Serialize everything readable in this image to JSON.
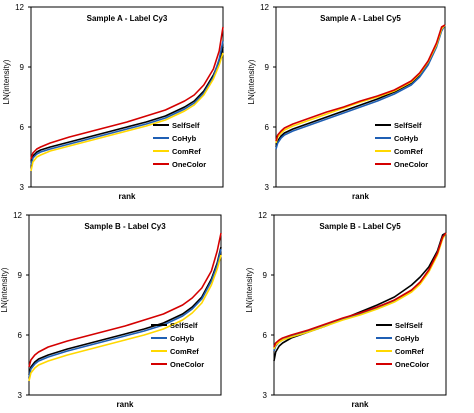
{
  "chart_data": [
    {
      "type": "line",
      "title": "Sample A - Label Cy3",
      "xlabel": "rank",
      "ylabel": "LN(intensity)",
      "yticks": [
        "3",
        "6",
        "9",
        "12"
      ],
      "ylim": [
        3,
        12
      ],
      "xlim": [
        0,
        100
      ],
      "legend": "bottom-right",
      "series": [
        {
          "name": "SelfSelf",
          "color": "#000000",
          "x": [
            0,
            1,
            3,
            5,
            10,
            20,
            30,
            40,
            50,
            60,
            70,
            80,
            85,
            90,
            95,
            98,
            100
          ],
          "y": [
            4.3,
            4.55,
            4.75,
            4.85,
            5.0,
            5.25,
            5.5,
            5.75,
            6.0,
            6.25,
            6.55,
            7.0,
            7.3,
            7.8,
            8.6,
            9.3,
            10.0
          ]
        },
        {
          "name": "CoHyb",
          "color": "#1f5fb4",
          "x": [
            0,
            1,
            3,
            5,
            10,
            20,
            30,
            40,
            50,
            60,
            70,
            80,
            85,
            90,
            95,
            98,
            100
          ],
          "y": [
            4.1,
            4.45,
            4.65,
            4.75,
            4.9,
            5.15,
            5.4,
            5.65,
            5.9,
            6.15,
            6.45,
            6.9,
            7.2,
            7.7,
            8.5,
            9.4,
            10.3
          ]
        },
        {
          "name": "ComRef",
          "color": "#ffd800",
          "x": [
            0,
            1,
            3,
            5,
            10,
            20,
            30,
            40,
            50,
            60,
            70,
            80,
            85,
            90,
            95,
            98,
            100
          ],
          "y": [
            3.8,
            4.25,
            4.5,
            4.6,
            4.8,
            5.05,
            5.3,
            5.55,
            5.8,
            6.05,
            6.35,
            6.8,
            7.1,
            7.6,
            8.4,
            9.1,
            9.7
          ]
        },
        {
          "name": "OneColor",
          "color": "#d40000",
          "x": [
            0,
            1,
            3,
            5,
            10,
            20,
            30,
            40,
            50,
            60,
            70,
            80,
            85,
            90,
            95,
            98,
            100
          ],
          "y": [
            4.4,
            4.7,
            4.9,
            5.0,
            5.2,
            5.5,
            5.75,
            6.0,
            6.25,
            6.55,
            6.85,
            7.3,
            7.6,
            8.1,
            8.9,
            9.8,
            11.0
          ]
        }
      ]
    },
    {
      "type": "line",
      "title": "Sample A - Label Cy5",
      "xlabel": "rank",
      "ylabel": "LN(intensity)",
      "yticks": [
        "3",
        "6",
        "9",
        "12"
      ],
      "ylim": [
        3,
        12
      ],
      "xlim": [
        0,
        100
      ],
      "legend": "bottom-right",
      "series": [
        {
          "name": "SelfSelf",
          "color": "#000000",
          "x": [
            0,
            1,
            3,
            5,
            10,
            20,
            30,
            40,
            50,
            60,
            70,
            80,
            85,
            90,
            95,
            98,
            100
          ],
          "y": [
            5.0,
            5.3,
            5.55,
            5.7,
            5.9,
            6.2,
            6.5,
            6.8,
            7.1,
            7.4,
            7.75,
            8.2,
            8.6,
            9.2,
            10.1,
            10.9,
            11.1
          ]
        },
        {
          "name": "CoHyb",
          "color": "#1f5fb4",
          "x": [
            0,
            1,
            3,
            5,
            10,
            20,
            30,
            40,
            50,
            60,
            70,
            80,
            85,
            90,
            95,
            98,
            100
          ],
          "y": [
            4.9,
            5.2,
            5.45,
            5.6,
            5.8,
            6.1,
            6.4,
            6.7,
            7.0,
            7.3,
            7.65,
            8.1,
            8.5,
            9.1,
            10.0,
            10.8,
            11.1
          ]
        },
        {
          "name": "ComRef",
          "color": "#ffd800",
          "x": [
            0,
            1,
            3,
            5,
            10,
            20,
            30,
            40,
            50,
            60,
            70,
            80,
            85,
            90,
            95,
            98,
            100
          ],
          "y": [
            5.2,
            5.5,
            5.7,
            5.85,
            6.05,
            6.35,
            6.65,
            6.95,
            7.25,
            7.5,
            7.8,
            8.25,
            8.65,
            9.25,
            10.1,
            10.9,
            11.1
          ]
        },
        {
          "name": "OneColor",
          "color": "#d40000",
          "x": [
            0,
            1,
            3,
            5,
            10,
            20,
            30,
            40,
            50,
            60,
            70,
            80,
            85,
            90,
            95,
            98,
            100
          ],
          "y": [
            5.3,
            5.6,
            5.8,
            5.95,
            6.15,
            6.45,
            6.75,
            7.0,
            7.3,
            7.55,
            7.85,
            8.3,
            8.7,
            9.3,
            10.2,
            11.0,
            11.1
          ]
        }
      ]
    },
    {
      "type": "line",
      "title": "Sample B - Label Cy3",
      "xlabel": "rank",
      "ylabel": "LN(intensity)",
      "yticks": [
        "3",
        "6",
        "9",
        "12"
      ],
      "ylim": [
        3,
        12
      ],
      "xlim": [
        0,
        100
      ],
      "legend": "bottom-right",
      "series": [
        {
          "name": "SelfSelf",
          "color": "#000000",
          "x": [
            0,
            1,
            3,
            5,
            10,
            20,
            30,
            40,
            50,
            60,
            70,
            80,
            85,
            90,
            95,
            98,
            100
          ],
          "y": [
            4.0,
            4.4,
            4.65,
            4.8,
            5.0,
            5.3,
            5.55,
            5.8,
            6.05,
            6.3,
            6.6,
            7.05,
            7.4,
            7.9,
            8.8,
            9.6,
            10.4
          ]
        },
        {
          "name": "CoHyb",
          "color": "#1f5fb4",
          "x": [
            0,
            1,
            3,
            5,
            10,
            20,
            30,
            40,
            50,
            60,
            70,
            80,
            85,
            90,
            95,
            98,
            100
          ],
          "y": [
            3.9,
            4.3,
            4.55,
            4.7,
            4.9,
            5.2,
            5.45,
            5.7,
            5.95,
            6.2,
            6.5,
            6.95,
            7.3,
            7.8,
            8.7,
            9.5,
            10.3
          ]
        },
        {
          "name": "ComRef",
          "color": "#ffd800",
          "x": [
            0,
            1,
            3,
            5,
            10,
            20,
            30,
            40,
            50,
            60,
            70,
            80,
            85,
            90,
            95,
            98,
            100
          ],
          "y": [
            3.7,
            4.1,
            4.35,
            4.5,
            4.7,
            5.0,
            5.25,
            5.5,
            5.75,
            6.0,
            6.3,
            6.75,
            7.1,
            7.6,
            8.5,
            9.3,
            10.0
          ]
        },
        {
          "name": "OneColor",
          "color": "#d40000",
          "x": [
            0,
            1,
            3,
            5,
            10,
            20,
            30,
            40,
            50,
            60,
            70,
            80,
            85,
            90,
            95,
            98,
            100
          ],
          "y": [
            4.4,
            4.75,
            5.0,
            5.15,
            5.4,
            5.7,
            5.95,
            6.2,
            6.45,
            6.75,
            7.05,
            7.5,
            7.85,
            8.35,
            9.2,
            10.2,
            11.1
          ]
        }
      ]
    },
    {
      "type": "line",
      "title": "Sample B - Label Cy5",
      "xlabel": "rank",
      "ylabel": "LN(intensity)",
      "yticks": [
        "3",
        "6",
        "9",
        "12"
      ],
      "ylim": [
        3,
        12
      ],
      "xlim": [
        0,
        100
      ],
      "legend": "bottom-right",
      "series": [
        {
          "name": "SelfSelf",
          "color": "#000000",
          "x": [
            0,
            1,
            3,
            5,
            10,
            20,
            30,
            40,
            50,
            60,
            70,
            80,
            85,
            90,
            95,
            98,
            100
          ],
          "y": [
            4.7,
            5.15,
            5.45,
            5.6,
            5.85,
            6.15,
            6.45,
            6.8,
            7.15,
            7.5,
            7.9,
            8.5,
            8.9,
            9.4,
            10.2,
            11.0,
            11.1
          ]
        },
        {
          "name": "CoHyb",
          "color": "#1f5fb4",
          "x": [
            0,
            1,
            3,
            5,
            10,
            20,
            30,
            40,
            50,
            60,
            70,
            80,
            85,
            90,
            95,
            98,
            100
          ],
          "y": [
            5.2,
            5.45,
            5.65,
            5.75,
            5.95,
            6.2,
            6.5,
            6.8,
            7.05,
            7.35,
            7.7,
            8.2,
            8.6,
            9.2,
            10.1,
            10.9,
            11.1
          ]
        },
        {
          "name": "ComRef",
          "color": "#ffd800",
          "x": [
            0,
            1,
            3,
            5,
            10,
            20,
            30,
            40,
            50,
            60,
            70,
            80,
            85,
            90,
            95,
            98,
            100
          ],
          "y": [
            5.3,
            5.5,
            5.65,
            5.75,
            5.9,
            6.15,
            6.45,
            6.75,
            7.0,
            7.3,
            7.65,
            8.15,
            8.55,
            9.15,
            10.0,
            10.8,
            11.1
          ]
        },
        {
          "name": "OneColor",
          "color": "#d40000",
          "x": [
            0,
            1,
            3,
            5,
            10,
            20,
            30,
            40,
            50,
            60,
            70,
            80,
            85,
            90,
            95,
            98,
            100
          ],
          "y": [
            5.4,
            5.6,
            5.75,
            5.85,
            6.0,
            6.25,
            6.55,
            6.85,
            7.1,
            7.4,
            7.75,
            8.25,
            8.65,
            9.25,
            10.1,
            10.9,
            11.1
          ]
        }
      ]
    }
  ]
}
